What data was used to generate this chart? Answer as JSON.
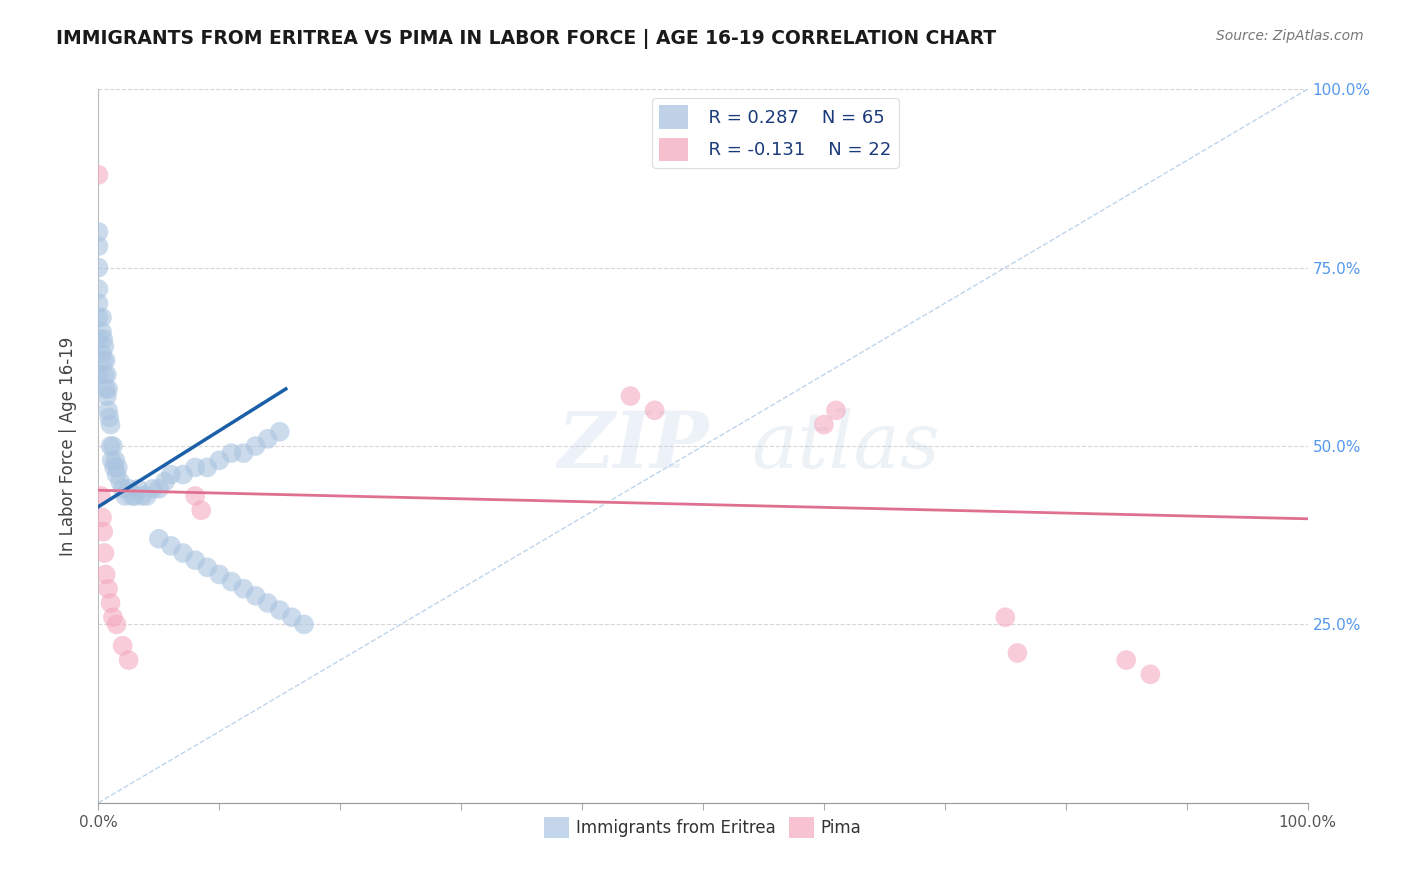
{
  "title": "IMMIGRANTS FROM ERITREA VS PIMA IN LABOR FORCE | AGE 16-19 CORRELATION CHART",
  "source": "Source: ZipAtlas.com",
  "ylabel": "In Labor Force | Age 16-19",
  "watermark_zip": "ZIP",
  "watermark_atlas": "atlas",
  "xlim": [
    0,
    1.0
  ],
  "ylim": [
    0,
    1.0
  ],
  "legend_r1": "R = 0.287",
  "legend_n1": "N = 65",
  "legend_r2": "R = -0.131",
  "legend_n2": "N = 22",
  "legend_label1": "Immigrants from Eritrea",
  "legend_label2": "Pima",
  "blue_color": "#aac4e0",
  "pink_color": "#f4aabe",
  "blue_line_color": "#1a5fa8",
  "pink_line_color": "#e07090",
  "diag_line_color": "#b8d0ea",
  "grid_color": "#cccccc",
  "right_tick_color": "#5599ee",
  "blue_scatter_x": [
    0.0,
    0.0,
    0.0,
    0.0,
    0.0,
    0.0,
    0.0,
    0.0,
    0.003,
    0.003,
    0.003,
    0.004,
    0.004,
    0.005,
    0.005,
    0.006,
    0.006,
    0.007,
    0.007,
    0.008,
    0.008,
    0.009,
    0.01,
    0.01,
    0.011,
    0.012,
    0.013,
    0.014,
    0.015,
    0.016,
    0.018,
    0.02,
    0.022,
    0.025,
    0.028,
    0.03,
    0.033,
    0.036,
    0.04,
    0.045,
    0.05,
    0.055,
    0.06,
    0.07,
    0.08,
    0.09,
    0.1,
    0.11,
    0.12,
    0.13,
    0.14,
    0.15,
    0.05,
    0.06,
    0.07,
    0.08,
    0.09,
    0.1,
    0.11,
    0.12,
    0.13,
    0.14,
    0.15,
    0.16,
    0.17
  ],
  "blue_scatter_y": [
    0.8,
    0.78,
    0.75,
    0.72,
    0.7,
    0.68,
    0.65,
    0.6,
    0.63,
    0.66,
    0.68,
    0.62,
    0.65,
    0.6,
    0.64,
    0.58,
    0.62,
    0.57,
    0.6,
    0.55,
    0.58,
    0.54,
    0.5,
    0.53,
    0.48,
    0.5,
    0.47,
    0.48,
    0.46,
    0.47,
    0.45,
    0.44,
    0.43,
    0.44,
    0.43,
    0.43,
    0.44,
    0.43,
    0.43,
    0.44,
    0.44,
    0.45,
    0.46,
    0.46,
    0.47,
    0.47,
    0.48,
    0.49,
    0.49,
    0.5,
    0.51,
    0.52,
    0.37,
    0.36,
    0.35,
    0.34,
    0.33,
    0.32,
    0.31,
    0.3,
    0.29,
    0.28,
    0.27,
    0.26,
    0.25
  ],
  "pink_scatter_x": [
    0.0,
    0.002,
    0.003,
    0.004,
    0.005,
    0.006,
    0.008,
    0.01,
    0.012,
    0.015,
    0.02,
    0.025,
    0.08,
    0.085,
    0.44,
    0.46,
    0.6,
    0.61,
    0.75,
    0.76,
    0.85,
    0.87
  ],
  "pink_scatter_y": [
    0.88,
    0.43,
    0.4,
    0.38,
    0.35,
    0.32,
    0.3,
    0.28,
    0.26,
    0.25,
    0.22,
    0.2,
    0.43,
    0.41,
    0.57,
    0.55,
    0.53,
    0.55,
    0.26,
    0.21,
    0.2,
    0.18
  ],
  "blue_trend_x": [
    0.0,
    0.155
  ],
  "blue_trend_y": [
    0.415,
    0.58
  ],
  "pink_trend_x": [
    0.0,
    1.0
  ],
  "pink_trend_y": [
    0.438,
    0.398
  ],
  "xticks": [
    0.0,
    0.1,
    0.2,
    0.3,
    0.4,
    0.5,
    0.6,
    0.7,
    0.8,
    0.9,
    1.0
  ],
  "yticks": [
    0.0,
    0.25,
    0.5,
    0.75,
    1.0
  ],
  "right_ytick_labels": [
    "",
    "25.0%",
    "50.0%",
    "75.0%",
    "100.0%"
  ]
}
